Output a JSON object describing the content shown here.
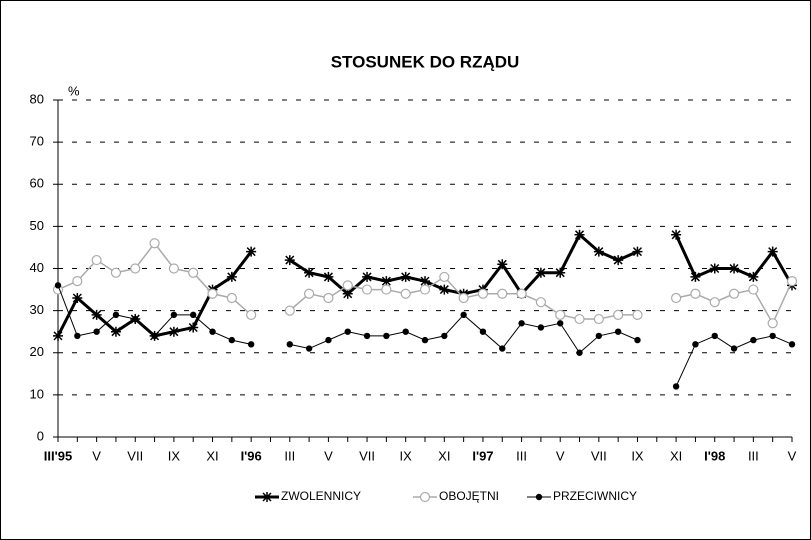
{
  "chart_data": {
    "type": "line",
    "title": "STOSUNEK DO RZĄDU",
    "y_label": "%",
    "categories": [
      "III'95",
      null,
      "V",
      null,
      "VII",
      null,
      "IX",
      null,
      "XI",
      null,
      "I'96",
      null,
      "III",
      null,
      "V",
      null,
      "VII",
      null,
      "IX",
      null,
      "XI",
      null,
      "I'97",
      null,
      "III",
      null,
      "V",
      null,
      "VII",
      null,
      "IX",
      null,
      "XI",
      null,
      "I'98",
      null,
      "III",
      null,
      "V"
    ],
    "series": [
      {
        "name": "ZWOLENNICY",
        "color": "#000000",
        "values": [
          24,
          33,
          29,
          25,
          28,
          24,
          25,
          26,
          35,
          38,
          44,
          null,
          42,
          39,
          38,
          34,
          38,
          37,
          38,
          37,
          35,
          34,
          35,
          41,
          34,
          39,
          39,
          48,
          44,
          42,
          44,
          null,
          48,
          38,
          40,
          40,
          38,
          44,
          36
        ]
      },
      {
        "name": "OBOJĘTNI",
        "color": "#aaaaaa",
        "values": [
          35,
          37,
          42,
          39,
          40,
          46,
          40,
          39,
          34,
          33,
          29,
          null,
          30,
          34,
          33,
          36,
          35,
          35,
          34,
          35,
          38,
          33,
          34,
          34,
          34,
          32,
          29,
          28,
          28,
          29,
          29,
          null,
          33,
          34,
          32,
          34,
          35,
          27,
          37
        ]
      },
      {
        "name": "PRZECIWNICY",
        "color": "#000000",
        "values": [
          36,
          24,
          25,
          29,
          28,
          24,
          29,
          29,
          25,
          23,
          22,
          null,
          22,
          21,
          23,
          25,
          24,
          24,
          25,
          23,
          24,
          29,
          25,
          21,
          27,
          26,
          27,
          20,
          24,
          25,
          23,
          null,
          12,
          22,
          24,
          21,
          23,
          24,
          22
        ]
      }
    ],
    "ylim": [
      0,
      80
    ],
    "yticks": [
      0,
      10,
      20,
      30,
      40,
      50,
      60,
      70,
      80
    ],
    "grid": true
  }
}
